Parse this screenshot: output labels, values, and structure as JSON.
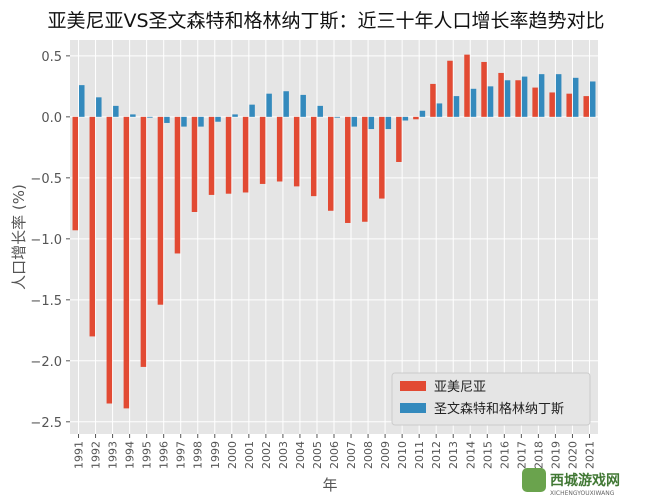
{
  "chart_data": {
    "type": "bar",
    "title": "亚美尼亚VS圣文森特和格林纳丁斯：近三十年人口增长率趋势对比",
    "xlabel": "年",
    "ylabel": "人口增长率 (%)",
    "ylim": [
      -2.6,
      0.63
    ],
    "yticks": [
      0.5,
      0.0,
      -0.5,
      -1.0,
      -1.5,
      -2.0,
      -2.5
    ],
    "ytick_labels": [
      "0.5",
      "0.0",
      "−0.5",
      "−1.0",
      "−1.5",
      "−2.0",
      "−2.5"
    ],
    "grid": true,
    "legend": "bottom-right",
    "categories": [
      "1991",
      "1992",
      "1993",
      "1994",
      "1995",
      "1996",
      "1997",
      "1998",
      "1999",
      "2000",
      "2001",
      "2002",
      "2003",
      "2004",
      "2005",
      "2006",
      "2007",
      "2008",
      "2009",
      "2010",
      "2011",
      "2012",
      "2013",
      "2014",
      "2015",
      "2016",
      "2017",
      "2018",
      "2019",
      "2020",
      "2021"
    ],
    "series": [
      {
        "name": "亚美尼亚",
        "color": "#E24A33",
        "values": [
          -0.93,
          -1.8,
          -2.35,
          -2.39,
          -2.05,
          -1.54,
          -1.12,
          -0.78,
          -0.64,
          -0.63,
          -0.62,
          -0.55,
          -0.53,
          -0.57,
          -0.65,
          -0.77,
          -0.87,
          -0.86,
          -0.67,
          -0.37,
          -0.02,
          0.27,
          0.46,
          0.51,
          0.45,
          0.36,
          0.3,
          0.24,
          0.2,
          0.19,
          0.17
        ]
      },
      {
        "name": "圣文森特和格林纳丁斯",
        "color": "#348ABD",
        "values": [
          0.26,
          0.16,
          0.09,
          0.02,
          -0.005,
          -0.05,
          -0.08,
          -0.08,
          -0.04,
          0.02,
          0.1,
          0.19,
          0.21,
          0.18,
          0.09,
          -0.005,
          -0.08,
          -0.1,
          -0.1,
          -0.03,
          0.05,
          0.11,
          0.17,
          0.23,
          0.25,
          0.3,
          0.33,
          0.35,
          0.35,
          0.32,
          0.29
        ]
      }
    ]
  },
  "watermark": {
    "text": "西城游戏网",
    "subtext": "XICHENGYOUXIWANG"
  }
}
